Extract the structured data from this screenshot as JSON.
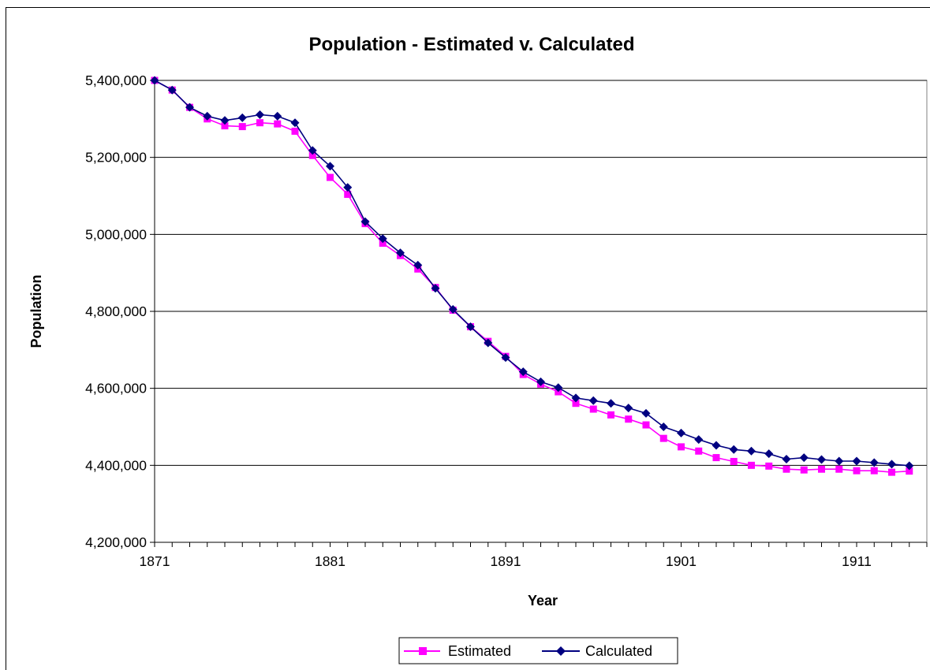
{
  "chart_data": {
    "type": "line",
    "title": "Population - Estimated v. Calculated",
    "xlabel": "Year",
    "ylabel": "Population",
    "xlim": [
      1871,
      1915
    ],
    "ylim": [
      4200000,
      5400000
    ],
    "x_ticks": [
      1871,
      1881,
      1891,
      1901,
      1911
    ],
    "x_tick_labels": [
      "1871",
      "1881",
      "1891",
      "1901",
      "1911"
    ],
    "y_ticks": [
      4200000,
      4400000,
      4600000,
      4800000,
      5000000,
      5200000,
      5400000
    ],
    "y_tick_labels": [
      "4,200,000",
      "4,400,000",
      "4,600,000",
      "4,800,000",
      "5,000,000",
      "5,200,000",
      "5,400,000"
    ],
    "grid": "horizontal major gridlines",
    "legend_position": "bottom",
    "x": [
      1871,
      1872,
      1873,
      1874,
      1875,
      1876,
      1877,
      1878,
      1879,
      1880,
      1881,
      1882,
      1883,
      1884,
      1885,
      1886,
      1887,
      1888,
      1889,
      1890,
      1891,
      1892,
      1893,
      1894,
      1895,
      1896,
      1897,
      1898,
      1899,
      1900,
      1901,
      1902,
      1903,
      1904,
      1905,
      1906,
      1907,
      1908,
      1909,
      1910,
      1911,
      1912,
      1913,
      1914
    ],
    "series": [
      {
        "name": "Estimated",
        "color": "#ff00ff",
        "marker": "square",
        "values": [
          5400000,
          5375000,
          5330000,
          5300000,
          5282000,
          5280000,
          5290000,
          5287000,
          5268000,
          5205000,
          5148000,
          5104000,
          5028000,
          4977000,
          4945000,
          4910000,
          4862000,
          4803000,
          4760000,
          4722000,
          4683000,
          4636000,
          4611000,
          4591000,
          4561000,
          4546000,
          4531000,
          4520000,
          4505000,
          4470000,
          4448000,
          4437000,
          4420000,
          4410000,
          4400000,
          4398000,
          4390000,
          4388000,
          4390000,
          4390000,
          4386000,
          4386000,
          4382000,
          4385000
        ]
      },
      {
        "name": "Calculated",
        "color": "#000080",
        "marker": "diamond",
        "values": [
          5400000,
          5375000,
          5330000,
          5307000,
          5296000,
          5303000,
          5311000,
          5307000,
          5290000,
          5218000,
          5177000,
          5122000,
          5033000,
          4989000,
          4952000,
          4920000,
          4860000,
          4805000,
          4760000,
          4718000,
          4680000,
          4643000,
          4617000,
          4602000,
          4575000,
          4568000,
          4561000,
          4549000,
          4535000,
          4500000,
          4484000,
          4467000,
          4452000,
          4441000,
          4437000,
          4430000,
          4416000,
          4420000,
          4415000,
          4411000,
          4411000,
          4407000,
          4403000,
          4399000
        ]
      }
    ]
  }
}
